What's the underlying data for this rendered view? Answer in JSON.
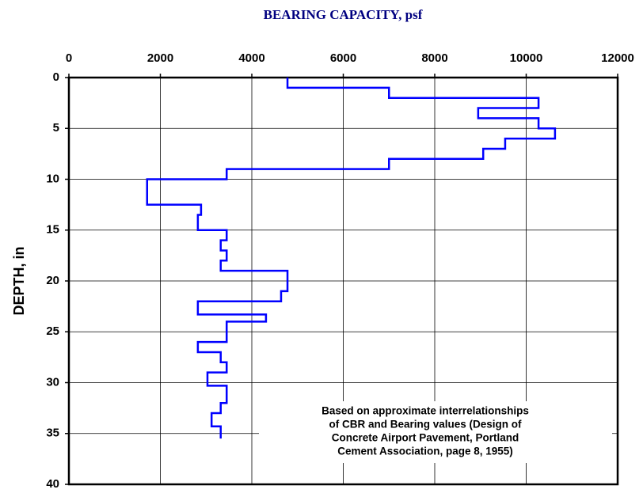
{
  "chart_data": {
    "type": "step-line",
    "title": "BEARING CAPACITY, psf",
    "y_label": "DEPTH, in",
    "annotation": [
      "Based on approximate interrelationships",
      "of CBR and Bearing values (Design of",
      "Concrete Airport Pavement, Portland",
      "Cement Association, page 8, 1955)"
    ],
    "xlim": [
      0,
      12000
    ],
    "xticks": [
      0,
      2000,
      4000,
      6000,
      8000,
      10000,
      12000
    ],
    "ylim": [
      0,
      40
    ],
    "yticks": [
      0,
      5,
      10,
      15,
      20,
      25,
      30,
      35,
      40
    ],
    "y_inverted": true,
    "x_axis_position": "top",
    "grid": true,
    "series": [
      {
        "color": "#0000ff",
        "values": [
          4780,
          4780,
          7000,
          7000,
          10270,
          10270,
          8950,
          8950,
          10270,
          10270,
          10630,
          10630,
          9540,
          9540,
          9060,
          9060,
          7000,
          7000,
          3450,
          3450,
          1710,
          1710,
          2890,
          2890,
          2820,
          2820,
          3450,
          3450,
          3320,
          3320,
          3450,
          3450,
          3320,
          3320,
          4780,
          4780,
          4640,
          4640,
          2820,
          2820,
          4310,
          4310,
          3450,
          3450,
          2820,
          2820,
          3320,
          3320,
          3450,
          3450,
          3030,
          3030,
          3450,
          3450,
          3320,
          3320,
          3120,
          3120,
          3320,
          3320
        ],
        "depth": [
          0,
          1,
          1,
          2,
          2,
          3,
          3,
          4,
          4,
          5,
          5,
          6,
          6,
          7,
          7,
          8,
          8,
          9,
          9,
          10,
          10,
          12.5,
          12.5,
          13.5,
          13.5,
          15,
          15,
          16,
          16,
          17,
          17,
          18,
          18,
          19,
          19,
          21,
          21,
          22,
          22,
          23.3,
          23.3,
          24,
          24,
          26,
          26,
          27,
          27,
          28,
          28,
          29,
          29,
          30.3,
          30.3,
          32,
          32,
          33,
          33,
          34.3,
          34.3,
          35.5
        ]
      }
    ]
  }
}
